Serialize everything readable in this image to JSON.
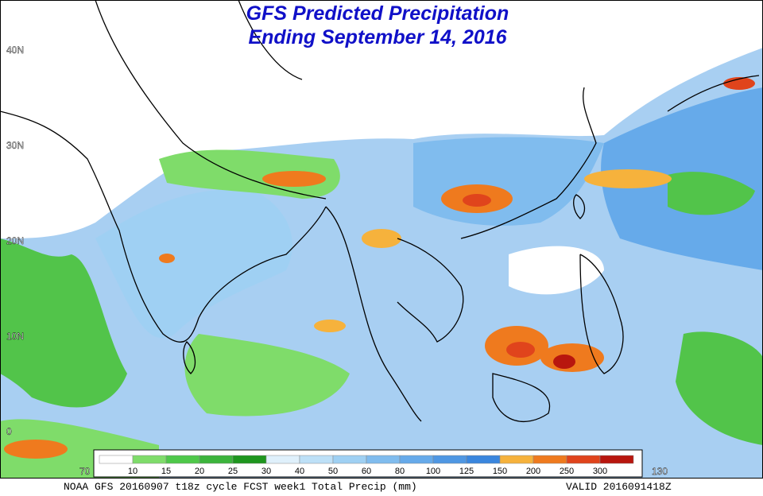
{
  "title": "GFS Predicted Precipitation",
  "subtitle": "Ending September 14, 2016",
  "latitude_labels": [
    "40N",
    "30N",
    "20N",
    "10N",
    "0"
  ],
  "longitude_labels": [
    "70",
    "130"
  ],
  "legend": {
    "labels": [
      10,
      15,
      20,
      25,
      30,
      40,
      50,
      60,
      80,
      100,
      125,
      150,
      200,
      250,
      300
    ],
    "colors": [
      "#ffffff",
      "#7fdc6a",
      "#4fc84a",
      "#3cb43c",
      "#1e961e",
      "#dff0fb",
      "#bde0f7",
      "#9fd0f3",
      "#80bcee",
      "#66aaea",
      "#4f97e3",
      "#3a86de",
      "#f6b23c",
      "#ef7a1e",
      "#e0441c",
      "#b8160e"
    ]
  },
  "footer": {
    "left": "NOAA GFS 20160907 t18z cycle FCST week1 Total Precip (mm)",
    "right": "VALID 2016091418Z"
  }
}
